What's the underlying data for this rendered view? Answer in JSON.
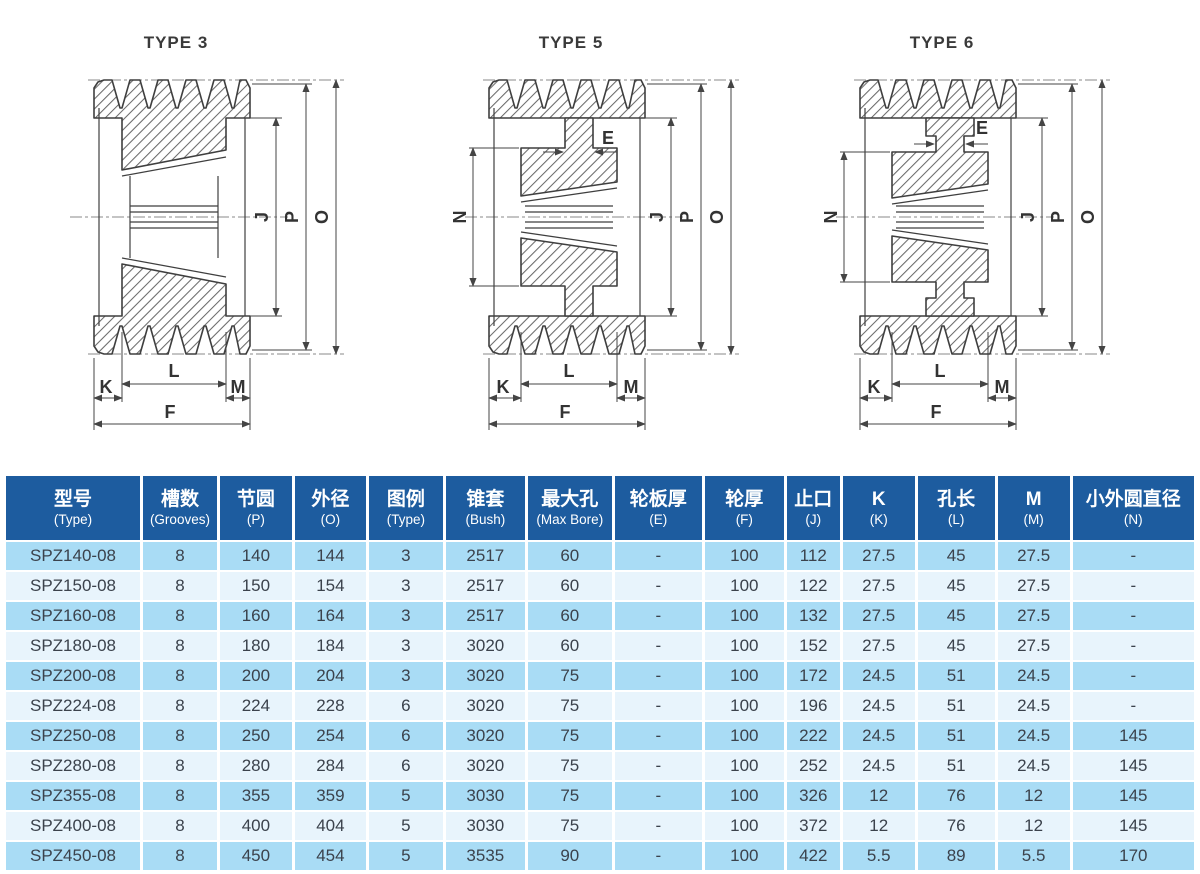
{
  "colors": {
    "header_bg": "#1d5c9f",
    "row_odd": "#a9dcf5",
    "row_even": "#e8f4fc",
    "text": "#3b424c",
    "line": "#3f3f3f"
  },
  "diagrams": [
    {
      "title": "TYPE 3",
      "dims": {
        "j": "J",
        "p": "P",
        "o": "O",
        "k": "K",
        "l": "L",
        "m": "M",
        "f": "F"
      }
    },
    {
      "title": "TYPE 5",
      "dims": {
        "e": "E",
        "n": "N",
        "j": "J",
        "p": "P",
        "o": "O",
        "k": "K",
        "l": "L",
        "m": "M",
        "f": "F"
      }
    },
    {
      "title": "TYPE 6",
      "dims": {
        "e": "E",
        "n": "N",
        "j": "J",
        "p": "P",
        "o": "O",
        "k": "K",
        "l": "L",
        "m": "M",
        "f": "F"
      }
    }
  ],
  "table": {
    "columns": [
      {
        "zh": "型号",
        "en": "(Type)"
      },
      {
        "zh": "槽数",
        "en": "(Grooves)"
      },
      {
        "zh": "节圆",
        "en": "(P)"
      },
      {
        "zh": "外径",
        "en": "(O)"
      },
      {
        "zh": "图例",
        "en": "(Type)"
      },
      {
        "zh": "锥套",
        "en": "(Bush)"
      },
      {
        "zh": "最大孔",
        "en": "(Max Bore)"
      },
      {
        "zh": "轮板厚",
        "en": "(E)"
      },
      {
        "zh": "轮厚",
        "en": "(F)"
      },
      {
        "zh": "止口",
        "en": "(J)"
      },
      {
        "zh": "K",
        "en": "(K)"
      },
      {
        "zh": "孔长",
        "en": "(L)"
      },
      {
        "zh": "M",
        "en": "(M)"
      },
      {
        "zh": "小外圆直径",
        "en": "(N)"
      }
    ],
    "rows": [
      [
        "SPZ140-08",
        "8",
        "140",
        "144",
        "3",
        "2517",
        "60",
        "-",
        "100",
        "112",
        "27.5",
        "45",
        "27.5",
        "-"
      ],
      [
        "SPZ150-08",
        "8",
        "150",
        "154",
        "3",
        "2517",
        "60",
        "-",
        "100",
        "122",
        "27.5",
        "45",
        "27.5",
        "-"
      ],
      [
        "SPZ160-08",
        "8",
        "160",
        "164",
        "3",
        "2517",
        "60",
        "-",
        "100",
        "132",
        "27.5",
        "45",
        "27.5",
        "-"
      ],
      [
        "SPZ180-08",
        "8",
        "180",
        "184",
        "3",
        "3020",
        "60",
        "-",
        "100",
        "152",
        "27.5",
        "45",
        "27.5",
        "-"
      ],
      [
        "SPZ200-08",
        "8",
        "200",
        "204",
        "3",
        "3020",
        "75",
        "-",
        "100",
        "172",
        "24.5",
        "51",
        "24.5",
        "-"
      ],
      [
        "SPZ224-08",
        "8",
        "224",
        "228",
        "6",
        "3020",
        "75",
        "-",
        "100",
        "196",
        "24.5",
        "51",
        "24.5",
        "-"
      ],
      [
        "SPZ250-08",
        "8",
        "250",
        "254",
        "6",
        "3020",
        "75",
        "-",
        "100",
        "222",
        "24.5",
        "51",
        "24.5",
        "145"
      ],
      [
        "SPZ280-08",
        "8",
        "280",
        "284",
        "6",
        "3020",
        "75",
        "-",
        "100",
        "252",
        "24.5",
        "51",
        "24.5",
        "145"
      ],
      [
        "SPZ355-08",
        "8",
        "355",
        "359",
        "5",
        "3030",
        "75",
        "-",
        "100",
        "326",
        "12",
        "76",
        "12",
        "145"
      ],
      [
        "SPZ400-08",
        "8",
        "400",
        "404",
        "5",
        "3030",
        "75",
        "-",
        "100",
        "372",
        "12",
        "76",
        "12",
        "145"
      ],
      [
        "SPZ450-08",
        "8",
        "450",
        "454",
        "5",
        "3535",
        "90",
        "-",
        "100",
        "422",
        "5.5",
        "89",
        "5.5",
        "170"
      ]
    ]
  }
}
